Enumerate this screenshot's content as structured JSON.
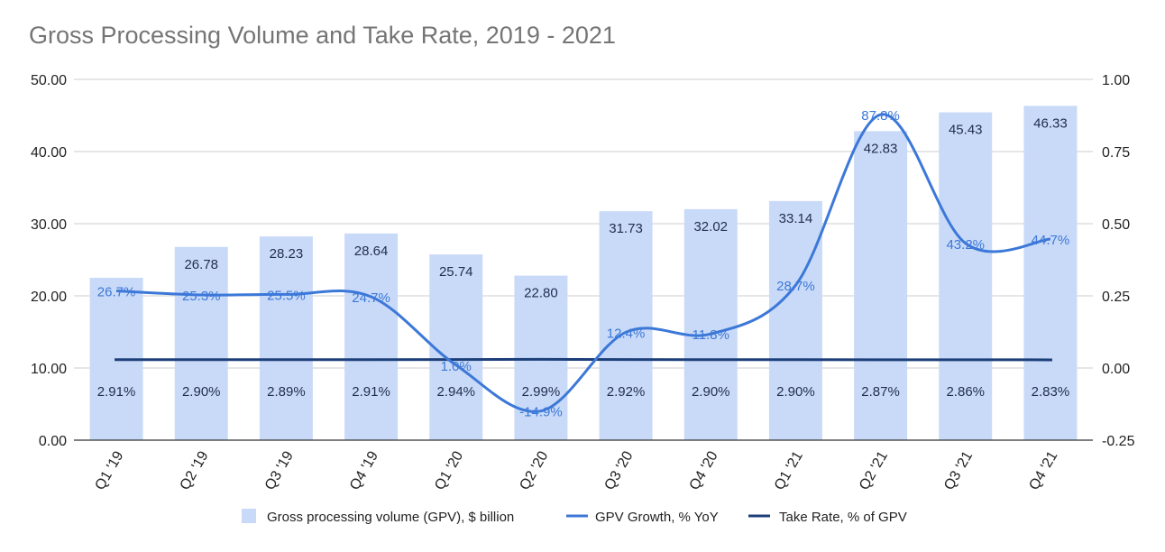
{
  "chart_data": {
    "type": "bar",
    "title": "Gross Processing Volume and Take Rate, 2019 - 2021",
    "categories": [
      "Q1 '19",
      "Q2 '19",
      "Q3 '19",
      "Q4 '19",
      "Q1 '20",
      "Q2 '20",
      "Q3 '20",
      "Q4 '20",
      "Q1 '21",
      "Q2 '21",
      "Q3 '21",
      "Q4 '21"
    ],
    "y_left": {
      "ticks": [
        "0.00",
        "10.00",
        "20.00",
        "30.00",
        "40.00",
        "50.00"
      ],
      "lim": [
        0,
        50
      ]
    },
    "y_right": {
      "ticks": [
        "-0.25",
        "0.00",
        "0.25",
        "0.50",
        "0.75",
        "1.00"
      ],
      "lim": [
        -0.25,
        1.0
      ]
    },
    "series": [
      {
        "name": "Gross processing volume (GPV), $ billion",
        "kind": "bar",
        "axis": "left",
        "color": "#c9daf8",
        "values": [
          22.5,
          26.78,
          28.23,
          28.64,
          25.74,
          22.8,
          31.73,
          32.02,
          33.14,
          42.83,
          45.43,
          46.33
        ],
        "labels": [
          "",
          "26.78",
          "28.23",
          "28.64",
          "25.74",
          "22.80",
          "31.73",
          "32.02",
          "33.14",
          "42.83",
          "45.43",
          "46.33"
        ]
      },
      {
        "name": "GPV Growth, % YoY",
        "kind": "line",
        "smooth": true,
        "axis": "right",
        "color": "#3c78d8",
        "values": [
          0.267,
          0.253,
          0.255,
          0.247,
          0.01,
          -0.149,
          0.124,
          0.118,
          0.287,
          0.878,
          0.432,
          0.447
        ],
        "labels": [
          "26.7%",
          "25.3%",
          "25.5%",
          "24.7%",
          "1.0%",
          "-14.9%",
          "12.4%",
          "11.8%",
          "28.7%",
          "87.8%",
          "43.2%",
          "44.7%"
        ]
      },
      {
        "name": "Take Rate, % of GPV",
        "kind": "line",
        "axis": "right",
        "color": "#1c3f7a",
        "values": [
          0.0291,
          0.029,
          0.0289,
          0.0291,
          0.0294,
          0.0299,
          0.0292,
          0.029,
          0.029,
          0.0287,
          0.0286,
          0.0283
        ],
        "labels": [
          "2.91%",
          "2.90%",
          "2.89%",
          "2.91%",
          "2.94%",
          "2.99%",
          "2.92%",
          "2.90%",
          "2.90%",
          "2.87%",
          "2.86%",
          "2.83%"
        ]
      }
    ],
    "grid": true,
    "legend": "bottom"
  }
}
